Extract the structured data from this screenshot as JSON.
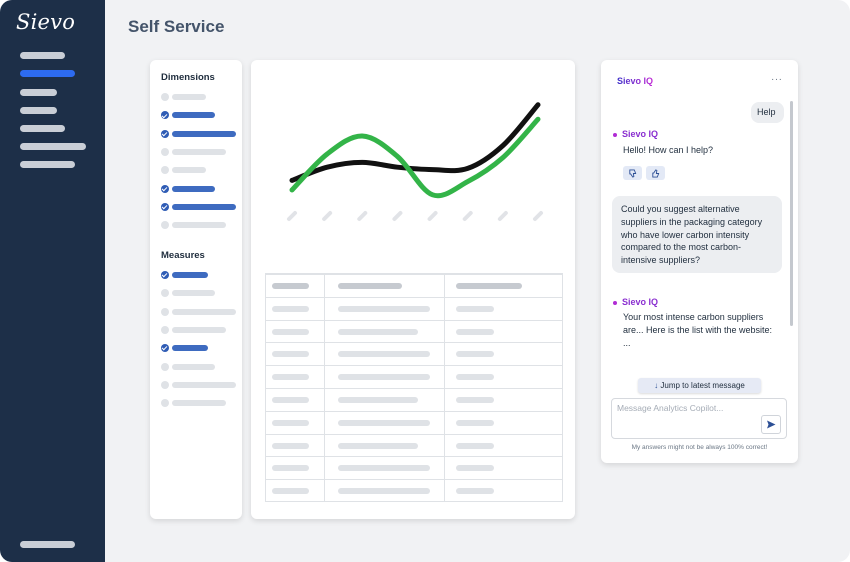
{
  "app": {
    "logo_text": "Sievo",
    "page_title": "Self Service"
  },
  "sidebar": {
    "items": [
      {
        "label": "",
        "active": false,
        "bar": 0.45
      },
      {
        "label": "",
        "active": true,
        "bar": 0.55
      },
      {
        "label": "",
        "active": false,
        "bar": 0.37
      },
      {
        "label": "",
        "active": false,
        "bar": 0.37
      },
      {
        "label": "",
        "active": false,
        "bar": 0.45
      },
      {
        "label": "",
        "active": false,
        "bar": 0.66
      },
      {
        "label": "",
        "active": false,
        "bar": 0.55
      }
    ],
    "footer_item": {
      "label": ""
    }
  },
  "filters": {
    "dimensions_heading": "Dimensions",
    "measures_heading": "Measures",
    "dimensions": [
      false,
      true,
      true,
      false,
      false,
      true,
      true,
      false
    ],
    "measures": [
      true,
      false,
      false,
      false,
      true,
      false,
      false,
      false
    ]
  },
  "chart_data": {
    "type": "line",
    "title": "",
    "xlabel": "",
    "ylabel": "",
    "x": [
      0,
      1,
      2,
      3,
      4,
      5,
      6,
      7
    ],
    "ylim": [
      0,
      10
    ],
    "series": [
      {
        "values": [
          3.3,
          4.4,
          4.8,
          4.4,
          4.2,
          4.3,
          6.2,
          9.6
        ],
        "color": "#111111"
      },
      {
        "values": [
          2.5,
          5.5,
          7.0,
          5.3,
          2.1,
          3.2,
          5.2,
          8.4
        ],
        "color": "#33b448"
      }
    ],
    "grid": false,
    "legend": "none"
  },
  "table": {
    "rows": 10,
    "columns": 3
  },
  "chat": {
    "title": "Sievo IQ",
    "menu_icon": "···",
    "user_message_1": "Help",
    "bot_name_1": "Sievo IQ",
    "bot_message_1": "Hello! How can I help?",
    "thumbs_down_icon": "thumbs-down-icon",
    "thumbs_up_icon": "thumbs-up-icon",
    "user_message_2": "Could you suggest alternative suppliers in the packaging category who have lower carbon intensity compared to the most carbon-intensive suppliers?",
    "bot_name_2": "Sievo IQ",
    "bot_message_2": "Your most intense carbon suppliers are... Here is the list with the website: ...",
    "jump_label": "Jump to latest message",
    "input_placeholder": "Message Analytics Copilot...",
    "disclaimer": "My answers might not be always 100% correct!",
    "accent_color": "#8a2fd0"
  }
}
